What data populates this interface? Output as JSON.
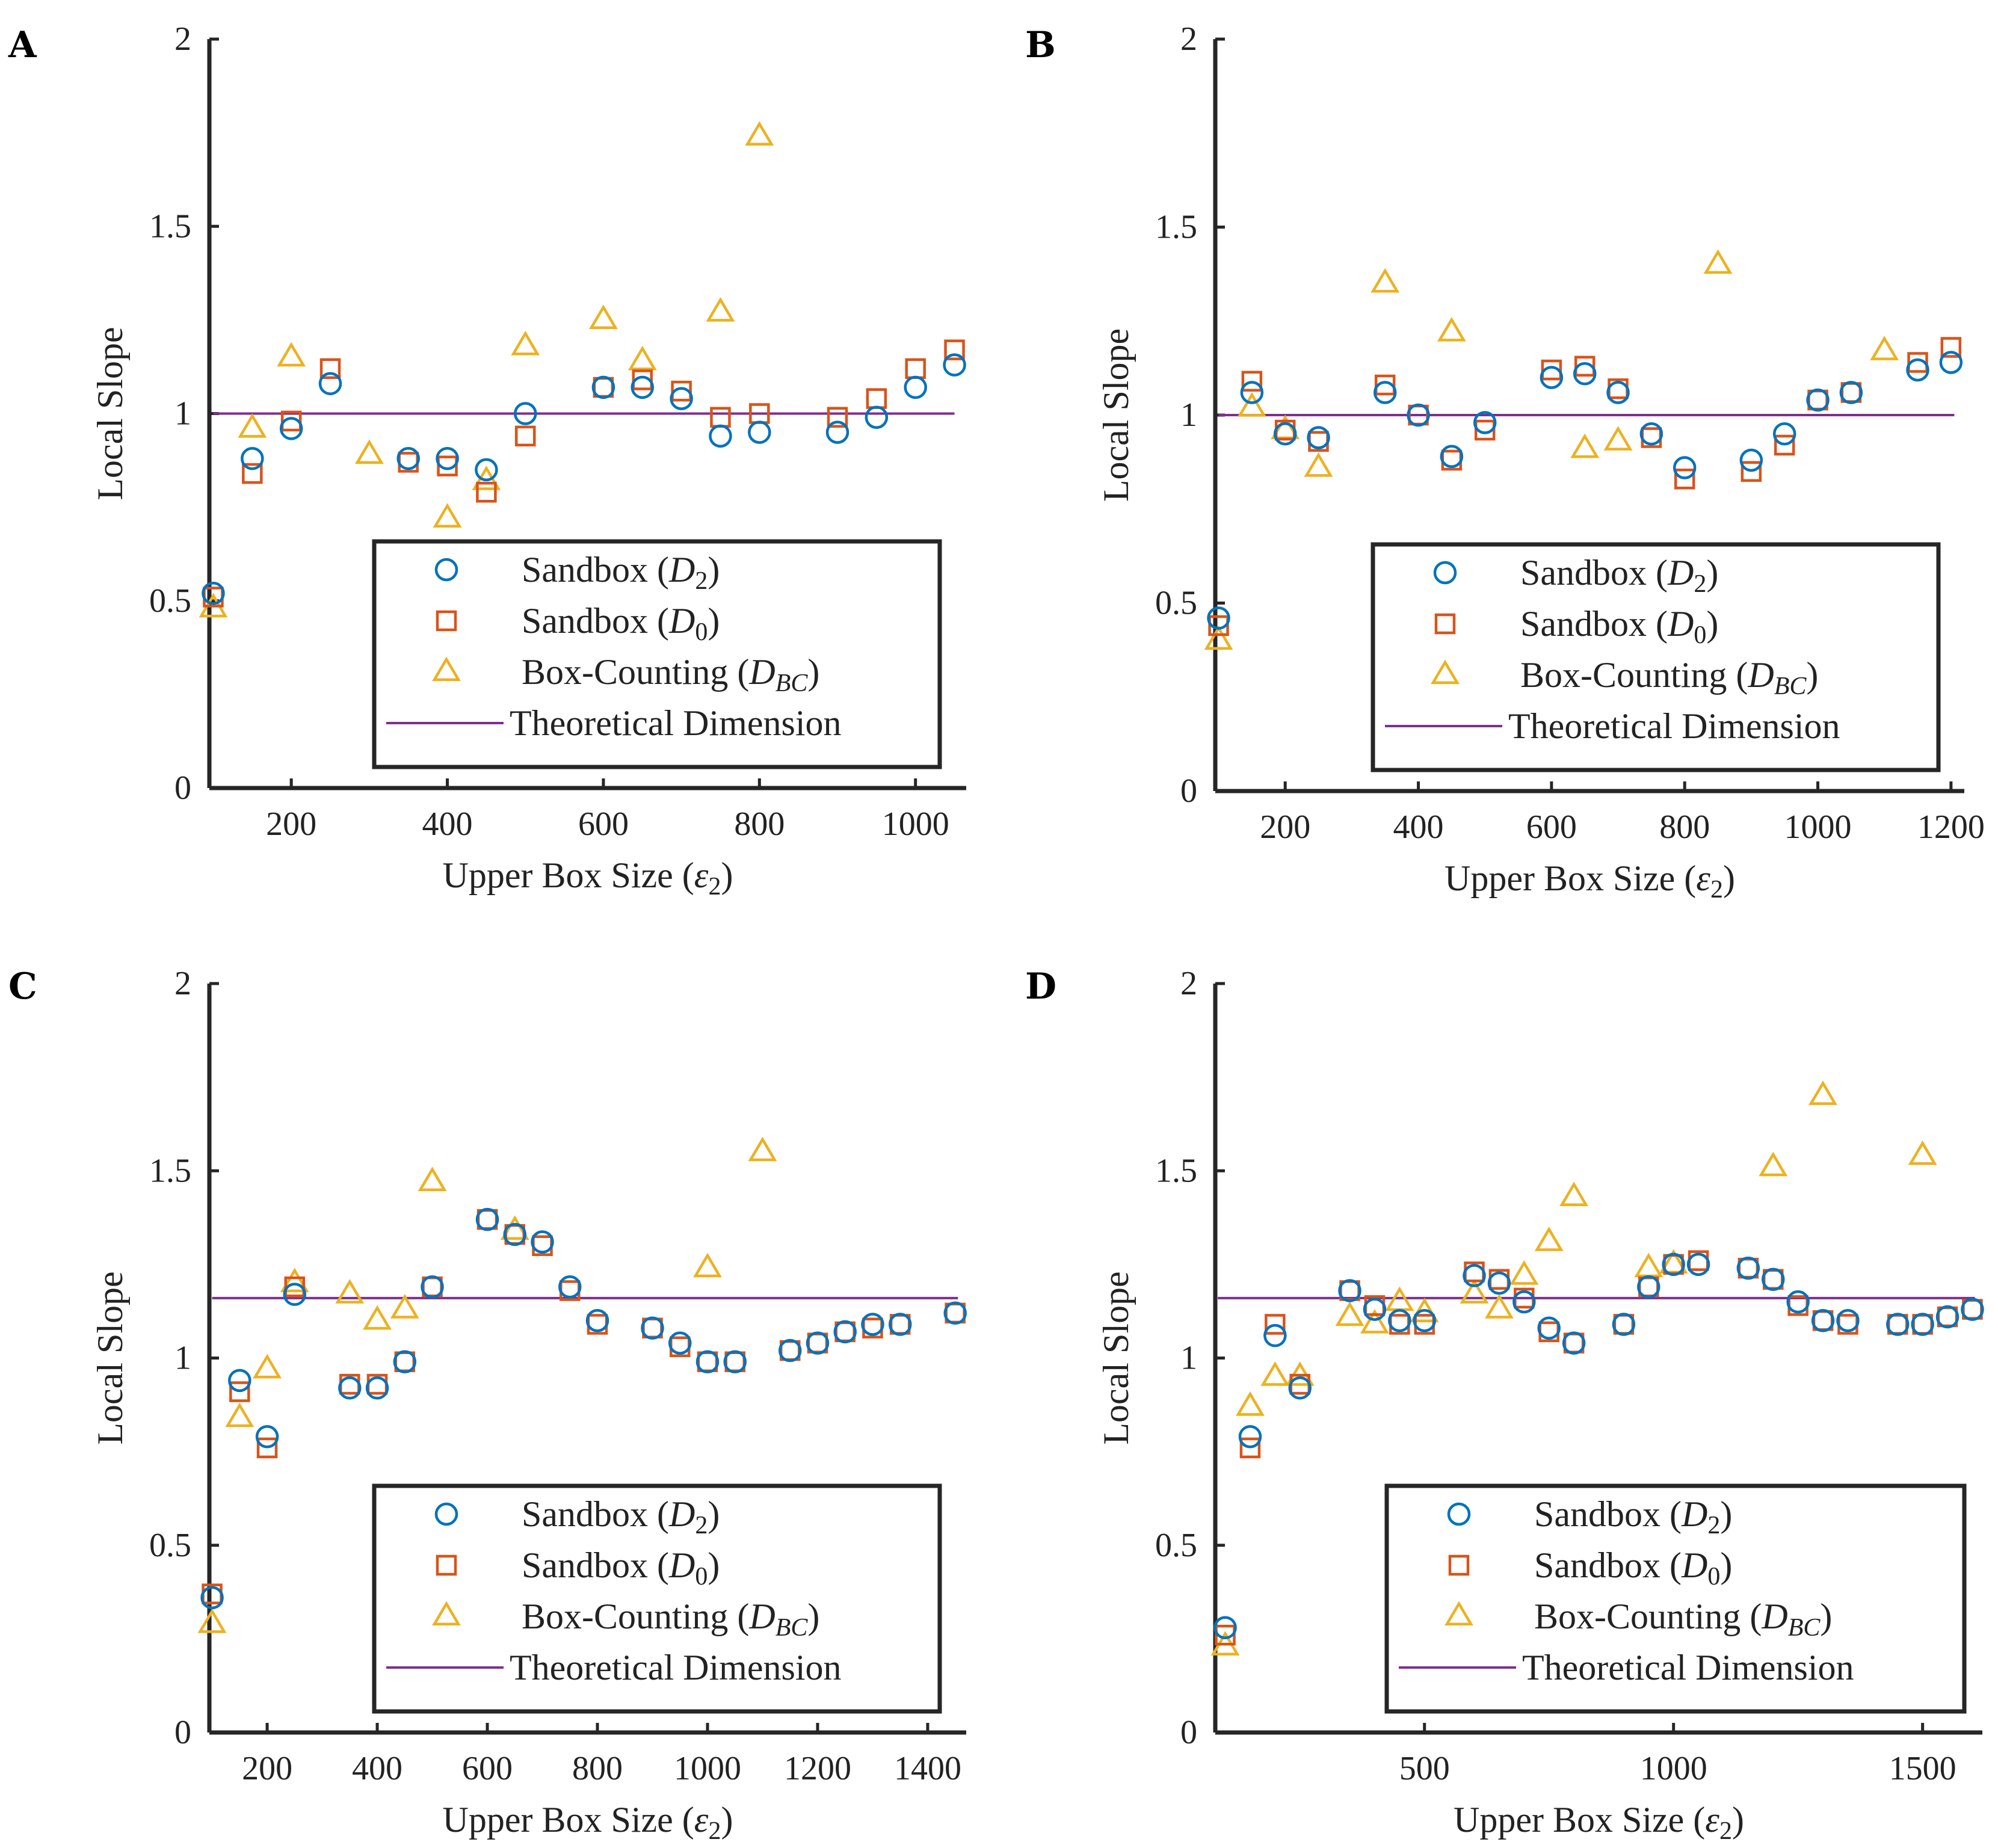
{
  "colors": {
    "sandbox_d2": "#0072BD",
    "sandbox_d0": "#D95319",
    "box_counting": "#EDB120",
    "theoretical": "#7E2F8E",
    "axis": "#262626"
  },
  "legend_entries": {
    "d2": "Sandbox (D2)",
    "d0": "Sandbox (D0)",
    "bc": "Box-Counting (DBC)",
    "theory": "Theoretical Dimension"
  },
  "chart_data": [
    {
      "panel": "A",
      "type": "scatter",
      "xlabel": "Upper Box Size (ε2)",
      "ylabel": "Local Slope",
      "xlim": [
        95,
        1065
      ],
      "ylim": [
        0,
        2
      ],
      "xticks": [
        200,
        400,
        600,
        800,
        1000
      ],
      "xtick_labels": [
        "200",
        "400",
        "600",
        "800",
        "1000"
      ],
      "yticks": [
        0,
        0.5,
        1,
        1.5,
        2
      ],
      "ytick_labels": [
        "0",
        "0.5",
        "1",
        "1.5",
        "2"
      ],
      "theoretical": 1.0,
      "series": [
        {
          "name": "Sandbox (D2)",
          "key": "d2",
          "x": [
            100,
            150,
            200,
            250,
            350,
            400,
            450,
            500,
            600,
            650,
            700,
            750,
            800,
            900,
            950,
            1000,
            1050
          ],
          "y": [
            0.52,
            0.88,
            0.96,
            1.08,
            0.88,
            0.88,
            0.85,
            1.0,
            1.07,
            1.07,
            1.04,
            0.94,
            0.95,
            0.95,
            0.99,
            1.07,
            1.13
          ]
        },
        {
          "name": "Sandbox (D0)",
          "key": "d0",
          "x": [
            100,
            150,
            200,
            250,
            350,
            400,
            450,
            500,
            600,
            650,
            700,
            750,
            800,
            900,
            950,
            1000,
            1050
          ],
          "y": [
            0.51,
            0.84,
            0.98,
            1.12,
            0.87,
            0.86,
            0.79,
            0.94,
            1.07,
            1.09,
            1.06,
            0.99,
            1.0,
            0.99,
            1.04,
            1.12,
            1.17
          ]
        },
        {
          "name": "Box-Counting (DBC)",
          "key": "bc",
          "x": [
            100,
            150,
            200,
            300,
            400,
            450,
            500,
            600,
            650,
            750,
            800
          ],
          "y": [
            0.48,
            0.96,
            1.15,
            0.89,
            0.72,
            0.82,
            1.18,
            1.25,
            1.14,
            1.27,
            1.74
          ]
        }
      ]
    },
    {
      "panel": "B",
      "type": "scatter",
      "xlabel": "Upper Box Size (ε2)",
      "ylabel": "Local Slope",
      "xlim": [
        95,
        1220
      ],
      "ylim": [
        0,
        2
      ],
      "xticks": [
        200,
        400,
        600,
        800,
        1000,
        1200
      ],
      "xtick_labels": [
        "200",
        "400",
        "600",
        "800",
        "1000",
        "1200"
      ],
      "yticks": [
        0,
        0.5,
        1,
        1.5,
        2
      ],
      "ytick_labels": [
        "0",
        "0.5",
        "1",
        "1.5",
        "2"
      ],
      "theoretical": 1.0,
      "series": [
        {
          "name": "Sandbox (D2)",
          "key": "d2",
          "x": [
            100,
            150,
            200,
            250,
            350,
            400,
            450,
            500,
            600,
            650,
            700,
            750,
            800,
            900,
            950,
            1000,
            1050,
            1150,
            1200
          ],
          "y": [
            0.46,
            1.06,
            0.95,
            0.94,
            1.06,
            1.0,
            0.89,
            0.98,
            1.1,
            1.11,
            1.06,
            0.95,
            0.86,
            0.88,
            0.95,
            1.04,
            1.06,
            1.12,
            1.14
          ]
        },
        {
          "name": "Sandbox (D0)",
          "key": "d0",
          "x": [
            100,
            150,
            200,
            250,
            350,
            400,
            450,
            500,
            600,
            650,
            700,
            750,
            800,
            900,
            950,
            1000,
            1050,
            1150,
            1200
          ],
          "y": [
            0.44,
            1.09,
            0.96,
            0.93,
            1.08,
            1.0,
            0.88,
            0.96,
            1.12,
            1.13,
            1.07,
            0.94,
            0.83,
            0.85,
            0.92,
            1.04,
            1.06,
            1.14,
            1.18
          ]
        },
        {
          "name": "Box-Counting (DBC)",
          "key": "bc",
          "x": [
            100,
            150,
            200,
            250,
            350,
            450,
            650,
            700,
            850,
            1100
          ],
          "y": [
            0.4,
            1.02,
            0.96,
            0.86,
            1.35,
            1.22,
            0.91,
            0.93,
            1.4,
            1.17
          ]
        }
      ]
    },
    {
      "panel": "C",
      "type": "scatter",
      "xlabel": "Upper Box Size (ε2)",
      "ylabel": "Local Slope",
      "xlim": [
        95,
        1470
      ],
      "ylim": [
        0,
        2
      ],
      "xticks": [
        200,
        400,
        600,
        800,
        1000,
        1200,
        1400
      ],
      "xtick_labels": [
        "200",
        "400",
        "600",
        "800",
        "1000",
        "1200",
        "1400"
      ],
      "yticks": [
        0,
        0.5,
        1,
        1.5,
        2
      ],
      "ytick_labels": [
        "0",
        "0.5",
        "1",
        "1.5",
        "2"
      ],
      "theoretical": 1.16,
      "series": [
        {
          "name": "Sandbox (D2)",
          "key": "d2",
          "x": [
            100,
            150,
            200,
            250,
            350,
            400,
            450,
            500,
            600,
            650,
            700,
            750,
            800,
            900,
            950,
            1000,
            1050,
            1150,
            1200,
            1250,
            1300,
            1350,
            1450
          ],
          "y": [
            0.36,
            0.94,
            0.79,
            1.17,
            0.92,
            0.92,
            0.99,
            1.19,
            1.37,
            1.33,
            1.31,
            1.19,
            1.1,
            1.08,
            1.04,
            0.99,
            0.99,
            1.02,
            1.04,
            1.07,
            1.09,
            1.09,
            1.12
          ]
        },
        {
          "name": "Sandbox (D0)",
          "key": "d0",
          "x": [
            100,
            150,
            200,
            250,
            350,
            400,
            450,
            500,
            600,
            650,
            700,
            750,
            800,
            900,
            950,
            1000,
            1050,
            1150,
            1200,
            1250,
            1300,
            1350,
            1450
          ],
          "y": [
            0.37,
            0.91,
            0.76,
            1.19,
            0.93,
            0.93,
            0.99,
            1.19,
            1.37,
            1.33,
            1.3,
            1.18,
            1.09,
            1.08,
            1.03,
            0.99,
            0.99,
            1.02,
            1.04,
            1.07,
            1.08,
            1.09,
            1.12
          ]
        },
        {
          "name": "Box-Counting (DBC)",
          "key": "bc",
          "x": [
            100,
            150,
            200,
            250,
            350,
            400,
            450,
            500,
            650,
            1000,
            1100
          ],
          "y": [
            0.29,
            0.84,
            0.97,
            1.2,
            1.17,
            1.1,
            1.13,
            1.47,
            1.34,
            1.24,
            1.55
          ]
        }
      ]
    },
    {
      "panel": "D",
      "type": "scatter",
      "xlabel": "Upper Box Size (ε2)",
      "ylabel": "Local Slope",
      "xlim": [
        80,
        1620
      ],
      "ylim": [
        0,
        2
      ],
      "xticks": [
        500,
        1000,
        1500
      ],
      "xtick_labels": [
        "500",
        "1000",
        "1500"
      ],
      "yticks": [
        0,
        0.5,
        1,
        1.5,
        2
      ],
      "ytick_labels": [
        "0",
        "0.5",
        "1",
        "1.5",
        "2"
      ],
      "theoretical": 1.16,
      "series": [
        {
          "name": "Sandbox (D2)",
          "key": "d2",
          "x": [
            100,
            150,
            200,
            250,
            350,
            400,
            450,
            500,
            600,
            650,
            700,
            750,
            800,
            900,
            950,
            1000,
            1050,
            1150,
            1200,
            1250,
            1300,
            1350,
            1450,
            1500,
            1550,
            1600
          ],
          "y": [
            0.28,
            0.79,
            1.06,
            0.92,
            1.18,
            1.13,
            1.1,
            1.1,
            1.22,
            1.2,
            1.15,
            1.08,
            1.04,
            1.09,
            1.19,
            1.25,
            1.25,
            1.24,
            1.21,
            1.15,
            1.1,
            1.1,
            1.09,
            1.09,
            1.11,
            1.13
          ]
        },
        {
          "name": "Sandbox (D0)",
          "key": "d0",
          "x": [
            100,
            150,
            200,
            250,
            350,
            400,
            450,
            500,
            600,
            650,
            700,
            750,
            800,
            900,
            950,
            1000,
            1050,
            1150,
            1200,
            1250,
            1300,
            1350,
            1450,
            1500,
            1550,
            1600
          ],
          "y": [
            0.26,
            0.76,
            1.09,
            0.93,
            1.18,
            1.14,
            1.09,
            1.09,
            1.23,
            1.21,
            1.16,
            1.07,
            1.04,
            1.09,
            1.19,
            1.25,
            1.26,
            1.24,
            1.21,
            1.14,
            1.1,
            1.09,
            1.09,
            1.09,
            1.11,
            1.13
          ]
        },
        {
          "name": "Box-Counting (DBC)",
          "key": "bc",
          "x": [
            100,
            150,
            200,
            250,
            350,
            400,
            450,
            500,
            600,
            650,
            700,
            750,
            800,
            950,
            1000,
            1200,
            1300,
            1500
          ],
          "y": [
            0.23,
            0.87,
            0.95,
            0.95,
            1.11,
            1.09,
            1.15,
            1.12,
            1.17,
            1.13,
            1.22,
            1.31,
            1.43,
            1.24,
            1.25,
            1.51,
            1.7,
            1.54
          ]
        }
      ]
    }
  ]
}
